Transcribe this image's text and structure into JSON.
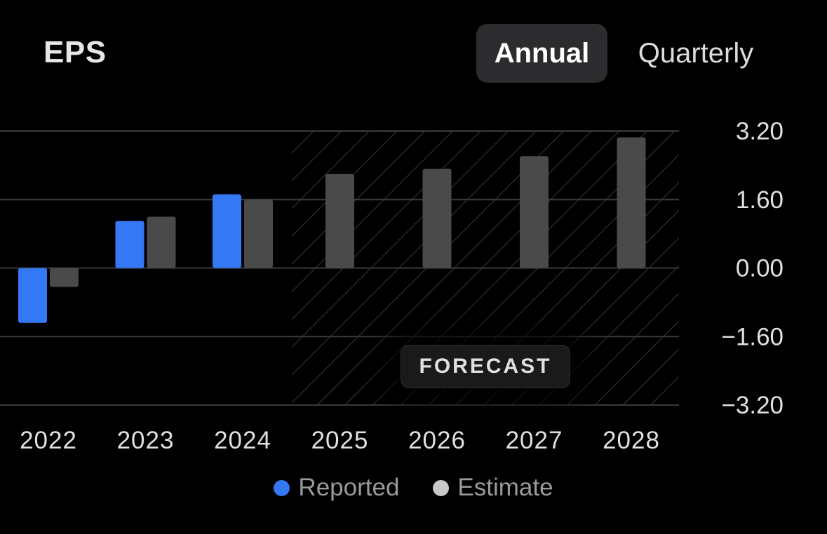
{
  "header": {
    "title": "EPS",
    "tabs": [
      {
        "label": "Annual",
        "active": true
      },
      {
        "label": "Quarterly",
        "active": false
      }
    ]
  },
  "colors": {
    "reported": "#3478f6",
    "estimate": "#4a4a4a",
    "legend_estimate_dot": "#c8c8c8",
    "gridline": "#3a3a3a",
    "hatch": "#3a3a3a",
    "background": "#000000"
  },
  "forecast_label": "FORECAST",
  "chart_data": {
    "type": "bar",
    "categories": [
      "2022",
      "2023",
      "2024",
      "2025",
      "2026",
      "2027",
      "2028"
    ],
    "series": [
      {
        "name": "Reported",
        "values": [
          -1.28,
          1.1,
          1.72,
          null,
          null,
          null,
          null
        ]
      },
      {
        "name": "Estimate",
        "values": [
          -0.44,
          1.2,
          1.6,
          2.2,
          2.32,
          2.61,
          3.05
        ]
      }
    ],
    "forecast_start_index": 3,
    "ylim": [
      -3.2,
      3.2
    ],
    "yticks": [
      "3.20",
      "1.60",
      "0.00",
      "−1.60",
      "−3.20"
    ],
    "ytick_values": [
      3.2,
      1.6,
      0,
      -1.6,
      -3.2
    ],
    "y_axis_position": "right",
    "grid": true,
    "legend": [
      {
        "label": "Reported"
      },
      {
        "label": "Estimate"
      }
    ],
    "legend_position": "bottom-center"
  }
}
